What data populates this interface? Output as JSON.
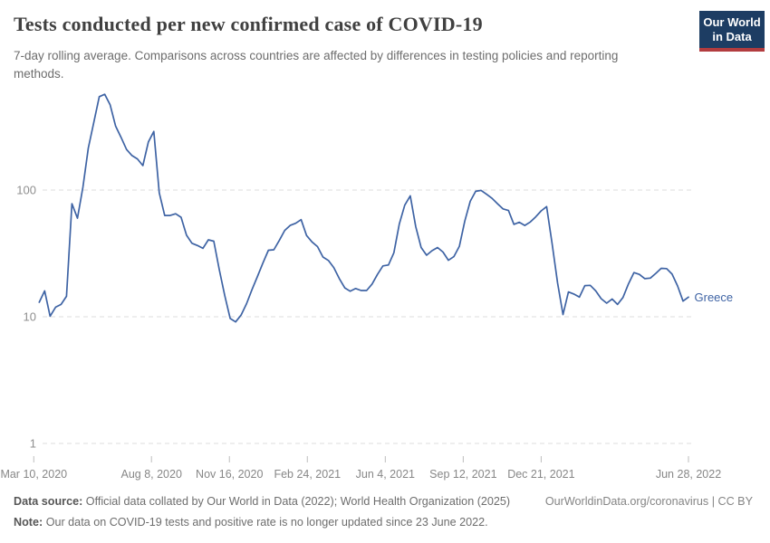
{
  "header": {
    "title": "Tests conducted per new confirmed case of COVID-19",
    "subtitle": "7-day rolling average. Comparisons across countries are affected by differences in testing policies and reporting methods."
  },
  "logo": {
    "line1": "Our World",
    "line2": "in Data",
    "bg_color": "#1d3d63",
    "accent_color": "#b23c3f"
  },
  "chart_data": {
    "type": "line",
    "title": "Tests conducted per new confirmed case of COVID-19",
    "xlabel": "",
    "ylabel": "",
    "yscale": "log",
    "ylim": [
      1,
      600
    ],
    "grid": "horizontal-dashed",
    "legend_position": "line-end",
    "yticks": [
      {
        "value": 1,
        "label": "1"
      },
      {
        "value": 10,
        "label": "10"
      },
      {
        "value": 100,
        "label": "100"
      }
    ],
    "xticks": [
      {
        "date": "2020-03-10",
        "label": "Mar 10, 2020"
      },
      {
        "date": "2020-08-08",
        "label": "Aug 8, 2020"
      },
      {
        "date": "2020-11-16",
        "label": "Nov 16, 2020"
      },
      {
        "date": "2021-02-24",
        "label": "Feb 24, 2021"
      },
      {
        "date": "2021-06-04",
        "label": "Jun 4, 2021"
      },
      {
        "date": "2021-09-12",
        "label": "Sep 12, 2021"
      },
      {
        "date": "2021-12-21",
        "label": "Dec 21, 2021"
      },
      {
        "date": "2022-06-28",
        "label": "Jun 28, 2022"
      }
    ],
    "series": [
      {
        "name": "Greece",
        "color": "#3e63a4",
        "start_date": "2020-03-17",
        "interval_days": 7,
        "values": [
          13,
          16,
          10.1,
          11.9,
          12.5,
          14.5,
          78,
          60,
          105,
          215,
          341,
          546,
          570,
          470,
          320,
          261,
          209,
          187,
          176,
          156,
          240,
          290,
          95,
          63,
          63,
          65,
          61,
          44,
          38,
          36.5,
          34.7,
          40.5,
          39.5,
          23.5,
          14.7,
          9.7,
          9.1,
          10.3,
          12.7,
          16.4,
          20.8,
          26.5,
          33.5,
          33.8,
          40,
          48,
          52.6,
          54.7,
          58.4,
          43.8,
          39,
          35.8,
          29.6,
          27.8,
          24.4,
          20,
          16.9,
          15.9,
          16.7,
          16.1,
          16.1,
          18.1,
          21.6,
          25.2,
          25.6,
          32,
          54,
          76,
          90,
          51.5,
          35.2,
          30.6,
          33.2,
          35.2,
          32.4,
          27.9,
          29.8,
          36,
          57,
          81.5,
          97.8,
          99.3,
          92.6,
          86,
          78,
          71,
          69,
          53.6,
          55.7,
          52.6,
          56,
          61.5,
          68.5,
          74,
          38,
          18.5,
          10.4,
          15.7,
          15.1,
          14.3,
          17.6,
          17.7,
          16,
          13.9,
          12.8,
          13.8,
          12.5,
          14.2,
          18.2,
          22.3,
          21.6,
          20,
          20.2,
          22,
          24.1,
          24,
          21.7,
          17.5,
          13.3,
          14.3
        ]
      }
    ]
  },
  "footer": {
    "datasource_label": "Data source:",
    "datasource_text": "Official data collated by Our World in Data (2022); World Health Organization (2025)",
    "link": "OurWorldinData.org/coronavirus | CC BY",
    "note_label": "Note:",
    "note_text": "Our data on COVID-19 tests and positive rate is no longer updated since 23 June 2022."
  }
}
